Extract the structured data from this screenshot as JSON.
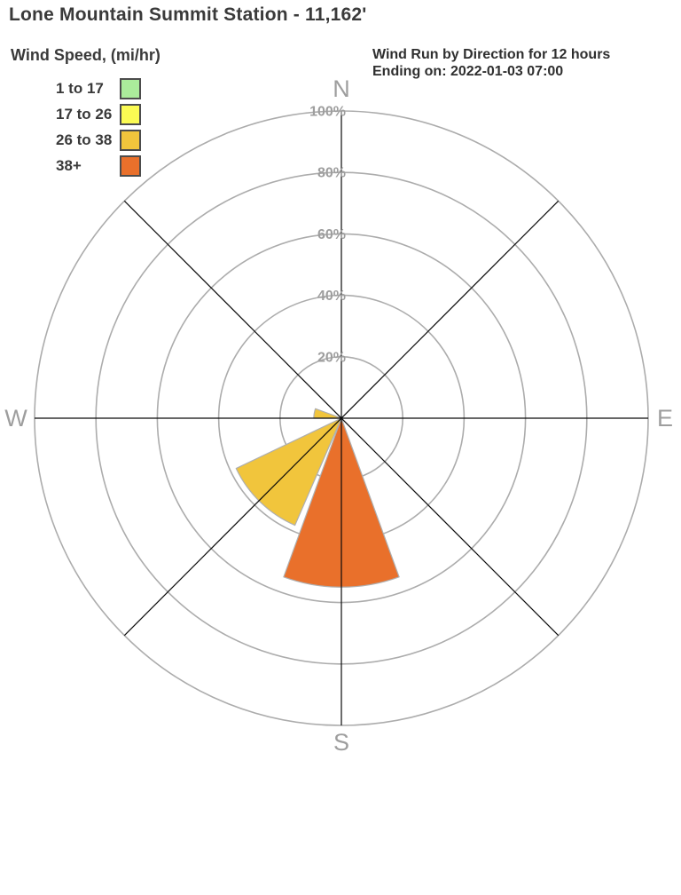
{
  "page_title": "Lone Mountain Summit Station - 11,162'",
  "legend": {
    "title": "Wind Speed, (mi/hr)",
    "items": [
      {
        "label": "1 to 17",
        "color": "#ABEC9B"
      },
      {
        "label": "17 to 26",
        "color": "#FBFB53"
      },
      {
        "label": "26 to 38",
        "color": "#F1C53C"
      },
      {
        "label": "38+",
        "color": "#E9702B"
      }
    ]
  },
  "chart_header": {
    "line1": "Wind Run by Direction for 12 hours",
    "line2": "Ending on: 2022-01-03 07:00"
  },
  "chart_data": {
    "type": "wind-rose",
    "title": "Wind Run by Direction for 12 hours Ending on: 2022-01-03 07:00",
    "station": "Lone Mountain Summit Station - 11,162'",
    "units": "percent of total wind run",
    "radial_axis": {
      "ticks": [
        20,
        40,
        60,
        80,
        100
      ],
      "tick_labels": [
        "20%",
        "40%",
        "60%",
        "80%",
        "100%"
      ],
      "max": 100
    },
    "compass": [
      {
        "label": "N",
        "bearing_deg": 0
      },
      {
        "label": "E",
        "bearing_deg": 90
      },
      {
        "label": "S",
        "bearing_deg": 180
      },
      {
        "label": "W",
        "bearing_deg": 270
      }
    ],
    "spoke_bearings_deg": [
      0,
      45,
      90,
      135
    ],
    "petals": [
      {
        "direction": "S",
        "center_bearing_deg": 180,
        "width_deg": 40,
        "value_pct": 55,
        "speed_bin": "38+",
        "color": "#E9702B"
      },
      {
        "direction": "SW",
        "center_bearing_deg": 224,
        "width_deg": 41,
        "value_pct": 38,
        "speed_bin": "26 to 38",
        "color": "#F1C53C"
      },
      {
        "direction": "W",
        "center_bearing_deg": 280,
        "width_deg": 20,
        "value_pct": 9,
        "speed_bin": "26 to 38",
        "color": "#F1C53C"
      }
    ],
    "colors": {
      "grid": "#ACACAC",
      "axis": "#0a0a0a",
      "labels": "#9E9E9E",
      "petal_outline": "#AFAFAF"
    },
    "legend_position": "top-left",
    "grid": true
  }
}
